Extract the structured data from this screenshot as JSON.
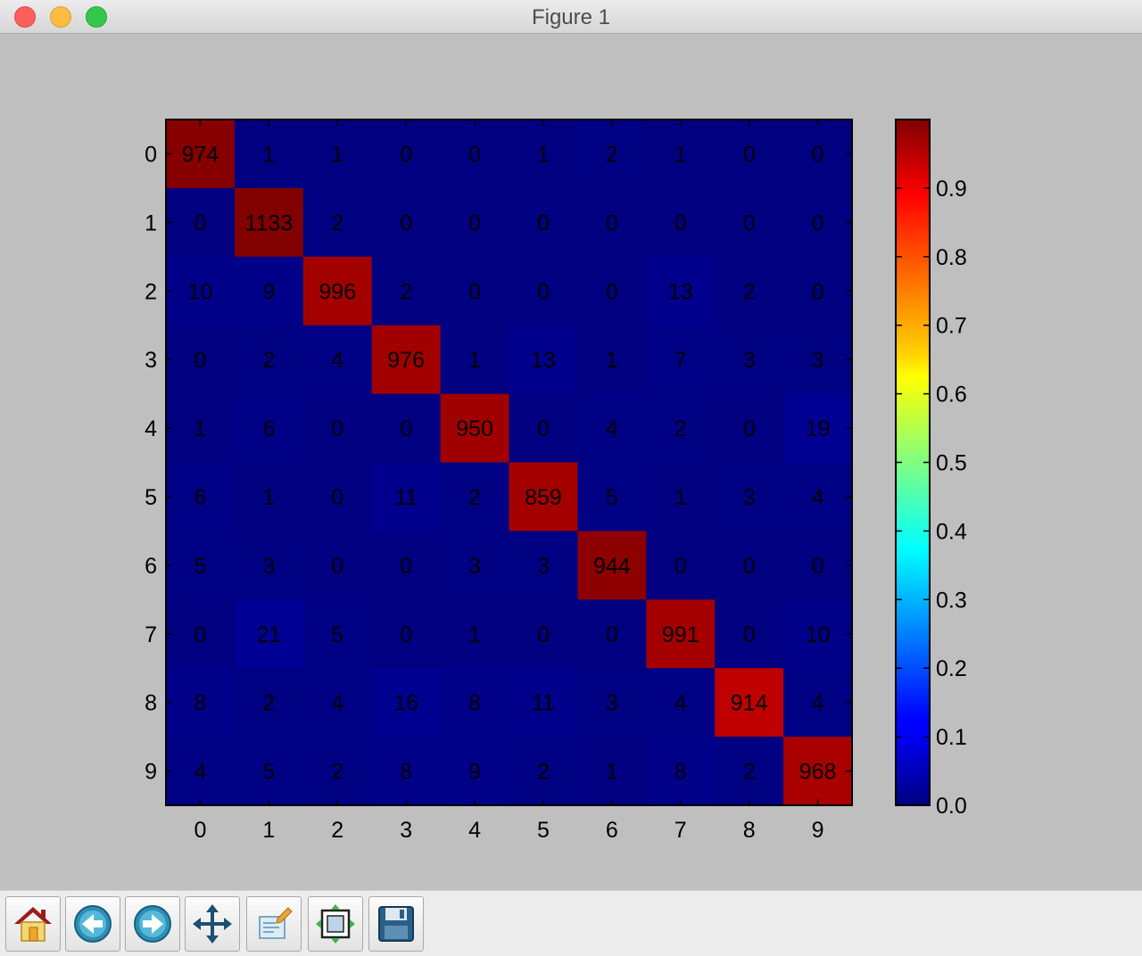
{
  "window": {
    "title": "Figure 1"
  },
  "chart_data": {
    "type": "heatmap",
    "title": "",
    "xlabel": "",
    "ylabel": "",
    "x_ticks": [
      "0",
      "1",
      "2",
      "3",
      "4",
      "5",
      "6",
      "7",
      "8",
      "9"
    ],
    "y_ticks": [
      "0",
      "1",
      "2",
      "3",
      "4",
      "5",
      "6",
      "7",
      "8",
      "9"
    ],
    "matrix": [
      [
        974,
        1,
        1,
        0,
        0,
        1,
        2,
        1,
        0,
        0
      ],
      [
        0,
        1133,
        2,
        0,
        0,
        0,
        0,
        0,
        0,
        0
      ],
      [
        10,
        9,
        996,
        2,
        0,
        0,
        0,
        13,
        2,
        0
      ],
      [
        0,
        2,
        4,
        976,
        1,
        13,
        1,
        7,
        3,
        3
      ],
      [
        1,
        6,
        0,
        0,
        950,
        0,
        4,
        2,
        0,
        19
      ],
      [
        6,
        1,
        0,
        11,
        2,
        859,
        5,
        1,
        3,
        4
      ],
      [
        5,
        3,
        0,
        0,
        3,
        3,
        944,
        0,
        0,
        0
      ],
      [
        0,
        21,
        5,
        0,
        1,
        0,
        0,
        991,
        0,
        10
      ],
      [
        8,
        2,
        4,
        16,
        8,
        11,
        3,
        4,
        914,
        4
      ],
      [
        4,
        5,
        2,
        8,
        9,
        2,
        1,
        8,
        2,
        968
      ]
    ],
    "colormap": "jet",
    "color_scale": "row-normalized (value / row sum)",
    "colorbar": {
      "range": [
        0.0,
        1.0
      ],
      "ticks": [
        "0.0",
        "0.1",
        "0.2",
        "0.3",
        "0.4",
        "0.5",
        "0.6",
        "0.7",
        "0.8",
        "0.9"
      ]
    }
  },
  "toolbar": {
    "buttons": [
      {
        "name": "home-button",
        "icon": "home-icon"
      },
      {
        "name": "back-button",
        "icon": "back-arrow-icon"
      },
      {
        "name": "forward-button",
        "icon": "forward-arrow-icon"
      },
      {
        "name": "pan-button",
        "icon": "move-arrows-icon"
      },
      {
        "name": "zoom-button",
        "icon": "zoom-rect-icon"
      },
      {
        "name": "subplots-button",
        "icon": "subplots-config-icon"
      },
      {
        "name": "save-button",
        "icon": "save-disk-icon"
      }
    ]
  }
}
